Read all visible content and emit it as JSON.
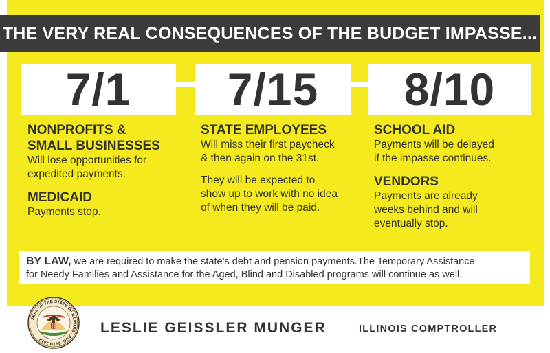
{
  "header": {
    "title": "THE VERY REAL CONSEQUENCES OF THE BUDGET IMPASSE..."
  },
  "timeline": [
    {
      "date": "7/1",
      "sections": [
        {
          "heading_lines": [
            "NONPROFITS &",
            "SMALL BUSINESSES"
          ],
          "body_lines": [
            "Will lose opportunities for",
            "expedited payments."
          ]
        },
        {
          "heading_lines": [
            "MEDICAID"
          ],
          "body_lines": [
            "Payments stop."
          ]
        }
      ]
    },
    {
      "date": "7/15",
      "sections": [
        {
          "heading_lines": [
            "STATE EMPLOYEES"
          ],
          "body_lines": [
            "Will miss their first paycheck",
            "& then again on the 31st."
          ]
        },
        {
          "heading_lines": [],
          "body_lines": [
            "They will be expected to",
            "show up to work with no idea",
            "of when they will be paid."
          ]
        }
      ]
    },
    {
      "date": "8/10",
      "sections": [
        {
          "heading_lines": [
            "SCHOOL AID"
          ],
          "body_lines": [
            "Payments will be delayed",
            "if the impasse continues."
          ]
        },
        {
          "heading_lines": [
            "VENDORS"
          ],
          "body_lines": [
            "Payments are already",
            "weeks behind and will",
            "eventually stop."
          ]
        }
      ]
    }
  ],
  "law_note": {
    "lead": "BY LAW,",
    "text_line1": " we are required to make the state’s debt and pension payments.The Temporary Assistance",
    "text_line2": "for Needy Families and Assistance for the Aged, Blind and Disabled programs will continue as well."
  },
  "footer": {
    "name": "LESLIE GEISSLER MUNGER",
    "title": "ILLINOIS COMPTROLLER",
    "seal_text": "SEAL OF THE STATE OF ILLINOIS · AUG. 26TH 1818 ·"
  },
  "colors": {
    "background": "#f4ea1d",
    "title_bar": "#3b3b3b",
    "text": "#333333",
    "white": "#ffffff"
  }
}
